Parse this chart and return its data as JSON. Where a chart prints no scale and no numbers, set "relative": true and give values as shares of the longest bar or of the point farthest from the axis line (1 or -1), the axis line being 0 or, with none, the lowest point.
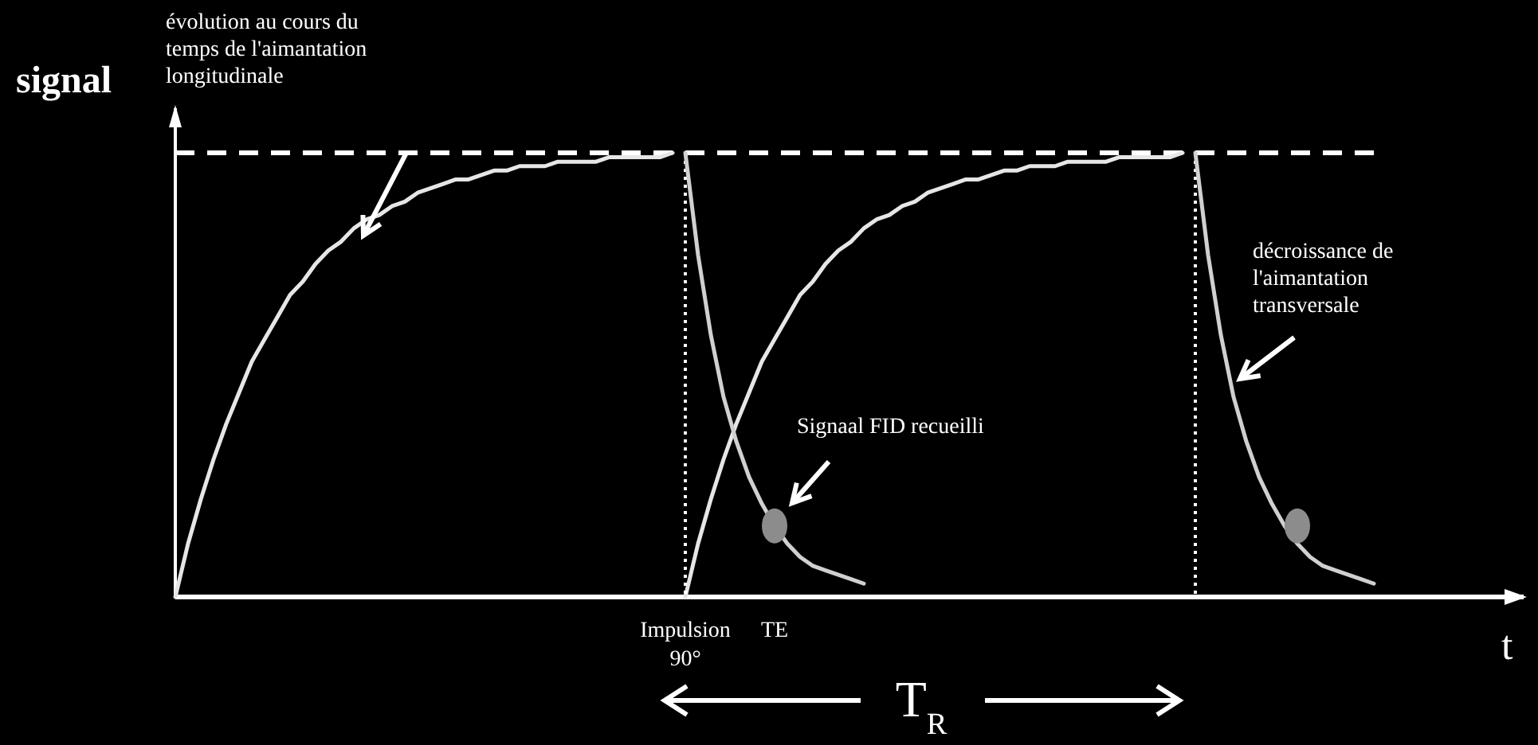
{
  "chart_data": {
    "type": "line",
    "relative": true,
    "ylabel": "signal",
    "xlabel": "t",
    "marker": "none",
    "line_style": "solid",
    "categories": [
      null,
      null,
      null,
      null,
      null,
      null,
      null,
      null,
      null,
      null,
      null,
      null,
      null,
      null,
      null,
      null,
      null,
      null,
      null,
      null,
      null,
      null,
      null,
      null,
      null,
      null,
      null,
      null,
      null,
      null,
      null,
      null,
      null,
      null,
      null,
      null,
      null,
      null,
      null,
      null,
      "Impulsion 90°",
      null,
      null,
      null,
      null,
      null,
      null,
      "TE",
      null,
      null,
      null,
      null,
      null,
      null,
      null,
      null,
      null,
      null,
      null,
      null,
      null,
      null,
      null,
      null,
      null,
      null,
      null,
      null,
      null,
      null,
      null,
      null,
      null,
      null,
      null,
      null,
      null,
      null,
      null,
      null,
      null,
      null,
      null,
      null,
      null,
      null,
      null,
      null,
      null,
      null,
      null,
      null,
      null,
      null,
      null,
      null,
      null,
      null,
      null,
      null,
      null,
      null,
      null,
      null,
      null,
      null
    ],
    "series": [
      {
        "color": "#e6e6e6",
        "values": [
          0,
          0.12,
          0.22,
          0.31,
          0.39,
          0.46,
          0.53,
          0.58,
          0.63,
          0.68,
          0.71,
          0.75,
          0.78,
          0.8,
          0.83,
          0.85,
          0.86,
          0.88,
          0.89,
          0.91,
          0.92,
          0.93,
          0.94,
          0.94,
          0.95,
          0.96,
          0.96,
          0.97,
          0.97,
          0.97,
          0.98,
          0.98,
          0.98,
          0.98,
          0.99,
          0.99,
          0.99,
          0.99,
          0.99,
          1,
          null,
          null,
          null,
          null,
          null,
          null,
          null,
          null,
          null,
          null,
          null,
          null,
          null,
          null,
          null,
          null,
          null,
          null,
          null,
          null,
          null,
          null,
          null,
          null,
          null,
          null,
          null,
          null,
          null,
          null,
          null,
          null,
          null,
          null,
          null,
          null,
          null,
          null,
          null,
          null,
          null,
          null,
          null,
          null,
          null,
          null,
          null,
          null,
          null,
          null,
          null,
          null,
          null,
          null,
          null,
          null,
          null,
          null,
          null,
          null,
          null,
          null,
          null,
          null,
          null,
          null
        ]
      },
      {
        "color": "#e6e6e6",
        "values": [
          null,
          null,
          null,
          null,
          null,
          null,
          null,
          null,
          null,
          null,
          null,
          null,
          null,
          null,
          null,
          null,
          null,
          null,
          null,
          null,
          null,
          null,
          null,
          null,
          null,
          null,
          null,
          null,
          null,
          null,
          null,
          null,
          null,
          null,
          null,
          null,
          null,
          null,
          null,
          null,
          0,
          0.12,
          0.22,
          0.31,
          0.39,
          0.46,
          0.53,
          0.58,
          0.63,
          0.68,
          0.71,
          0.75,
          0.78,
          0.8,
          0.83,
          0.85,
          0.86,
          0.88,
          0.89,
          0.91,
          0.92,
          0.93,
          0.94,
          0.94,
          0.95,
          0.96,
          0.96,
          0.97,
          0.97,
          0.97,
          0.98,
          0.98,
          0.98,
          0.98,
          0.99,
          0.99,
          0.99,
          0.99,
          0.99,
          1,
          null,
          null,
          null,
          null,
          null,
          null,
          null,
          null,
          null,
          null,
          null,
          null,
          null,
          null,
          null,
          null,
          null,
          null,
          null,
          null,
          null,
          null,
          null,
          null,
          null,
          null
        ]
      },
      {
        "color": "#d0d0d0",
        "values": [
          null,
          null,
          null,
          null,
          null,
          null,
          null,
          null,
          null,
          null,
          null,
          null,
          null,
          null,
          null,
          null,
          null,
          null,
          null,
          null,
          null,
          null,
          null,
          null,
          null,
          null,
          null,
          null,
          null,
          null,
          null,
          null,
          null,
          null,
          null,
          null,
          null,
          null,
          null,
          null,
          1,
          0.77,
          0.59,
          0.45,
          0.35,
          0.27,
          0.21,
          0.16,
          0.12,
          0.09,
          0.07,
          0.06,
          0.05,
          0.04,
          0.03,
          null,
          null,
          null,
          null,
          null,
          null,
          null,
          null,
          null,
          null,
          null,
          null,
          null,
          null,
          null,
          null,
          null,
          null,
          null,
          null,
          null,
          null,
          null,
          null,
          null,
          null,
          null,
          null,
          null,
          null,
          null,
          null,
          null,
          null,
          null,
          null,
          null,
          null,
          null,
          null,
          null,
          null,
          null,
          null,
          null,
          null,
          null,
          null,
          null,
          null,
          null
        ]
      },
      {
        "color": "#d0d0d0",
        "values": [
          null,
          null,
          null,
          null,
          null,
          null,
          null,
          null,
          null,
          null,
          null,
          null,
          null,
          null,
          null,
          null,
          null,
          null,
          null,
          null,
          null,
          null,
          null,
          null,
          null,
          null,
          null,
          null,
          null,
          null,
          null,
          null,
          null,
          null,
          null,
          null,
          null,
          null,
          null,
          null,
          null,
          null,
          null,
          null,
          null,
          null,
          null,
          null,
          null,
          null,
          null,
          null,
          null,
          null,
          null,
          null,
          null,
          null,
          null,
          null,
          null,
          null,
          null,
          null,
          null,
          null,
          null,
          null,
          null,
          null,
          null,
          null,
          null,
          null,
          null,
          null,
          null,
          null,
          null,
          null,
          1,
          0.77,
          0.59,
          0.45,
          0.35,
          0.27,
          0.21,
          0.16,
          0.12,
          0.09,
          0.07,
          0.06,
          0.05,
          0.04,
          0.03,
          null,
          null,
          null,
          null,
          null,
          null,
          null,
          null,
          null,
          null,
          null
        ]
      },
      {
        "type": "scatter",
        "color": "#8c8c8c",
        "marker": "circle",
        "values": [
          null,
          null,
          null,
          null,
          null,
          null,
          null,
          null,
          null,
          null,
          null,
          null,
          null,
          null,
          null,
          null,
          null,
          null,
          null,
          null,
          null,
          null,
          null,
          null,
          null,
          null,
          null,
          null,
          null,
          null,
          null,
          null,
          null,
          null,
          null,
          null,
          null,
          null,
          null,
          null,
          null,
          null,
          null,
          null,
          null,
          null,
          null,
          0.16,
          null,
          null,
          null,
          null,
          null,
          null,
          null,
          null,
          null,
          null,
          null,
          null,
          null,
          null,
          null,
          null,
          null,
          null,
          null,
          null,
          null,
          null,
          null,
          null,
          null,
          null,
          null,
          null,
          null,
          null,
          null,
          null,
          null,
          null,
          null,
          null,
          null,
          null,
          null,
          null,
          0.16,
          null,
          null,
          null,
          null,
          null,
          null,
          null,
          null,
          null,
          null,
          null,
          null,
          null,
          null,
          null,
          null,
          null
        ]
      }
    ],
    "ref_lines": [
      {
        "axis": "y",
        "value": 1,
        "line_style": "dashed",
        "color": "#ffffff"
      }
    ],
    "annotations": [
      "évolution au cours du temps de l'aimantation longitudinale",
      "Signaal FID recueilli",
      "décroissance de l'aimantation transversale",
      "T$_{R}$"
    ]
  }
}
